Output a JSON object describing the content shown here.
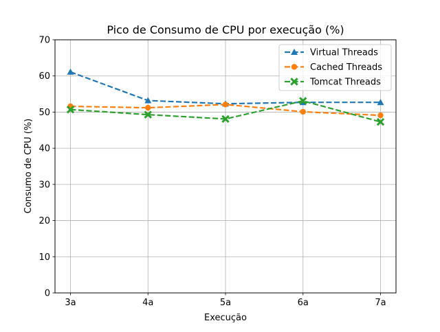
{
  "chart_data": {
    "type": "line",
    "title": "Pico de Consumo de CPU por execução (%)",
    "xlabel": "Execução",
    "ylabel": "Consumo de CPU (%)",
    "categories": [
      "3a",
      "4a",
      "5a",
      "6a",
      "7a"
    ],
    "ylim": [
      0,
      70
    ],
    "yticks": [
      0,
      10,
      20,
      30,
      40,
      50,
      60,
      70
    ],
    "grid": true,
    "legend_position": "top-right",
    "series": [
      {
        "name": "Virtual Threads",
        "values": [
          61.1,
          53.2,
          52.3,
          52.7,
          52.7
        ],
        "color": "#1f77b4",
        "marker": "triangle-up",
        "line_style": "dashed"
      },
      {
        "name": "Cached Threads",
        "values": [
          51.6,
          51.2,
          52.1,
          50.1,
          49.1
        ],
        "color": "#ff7f0e",
        "marker": "circle",
        "line_style": "dashed"
      },
      {
        "name": "Tomcat Threads",
        "values": [
          50.7,
          49.3,
          48.1,
          53.1,
          47.3
        ],
        "color": "#2ca02c",
        "marker": "x-filled",
        "line_style": "dashed"
      }
    ]
  }
}
